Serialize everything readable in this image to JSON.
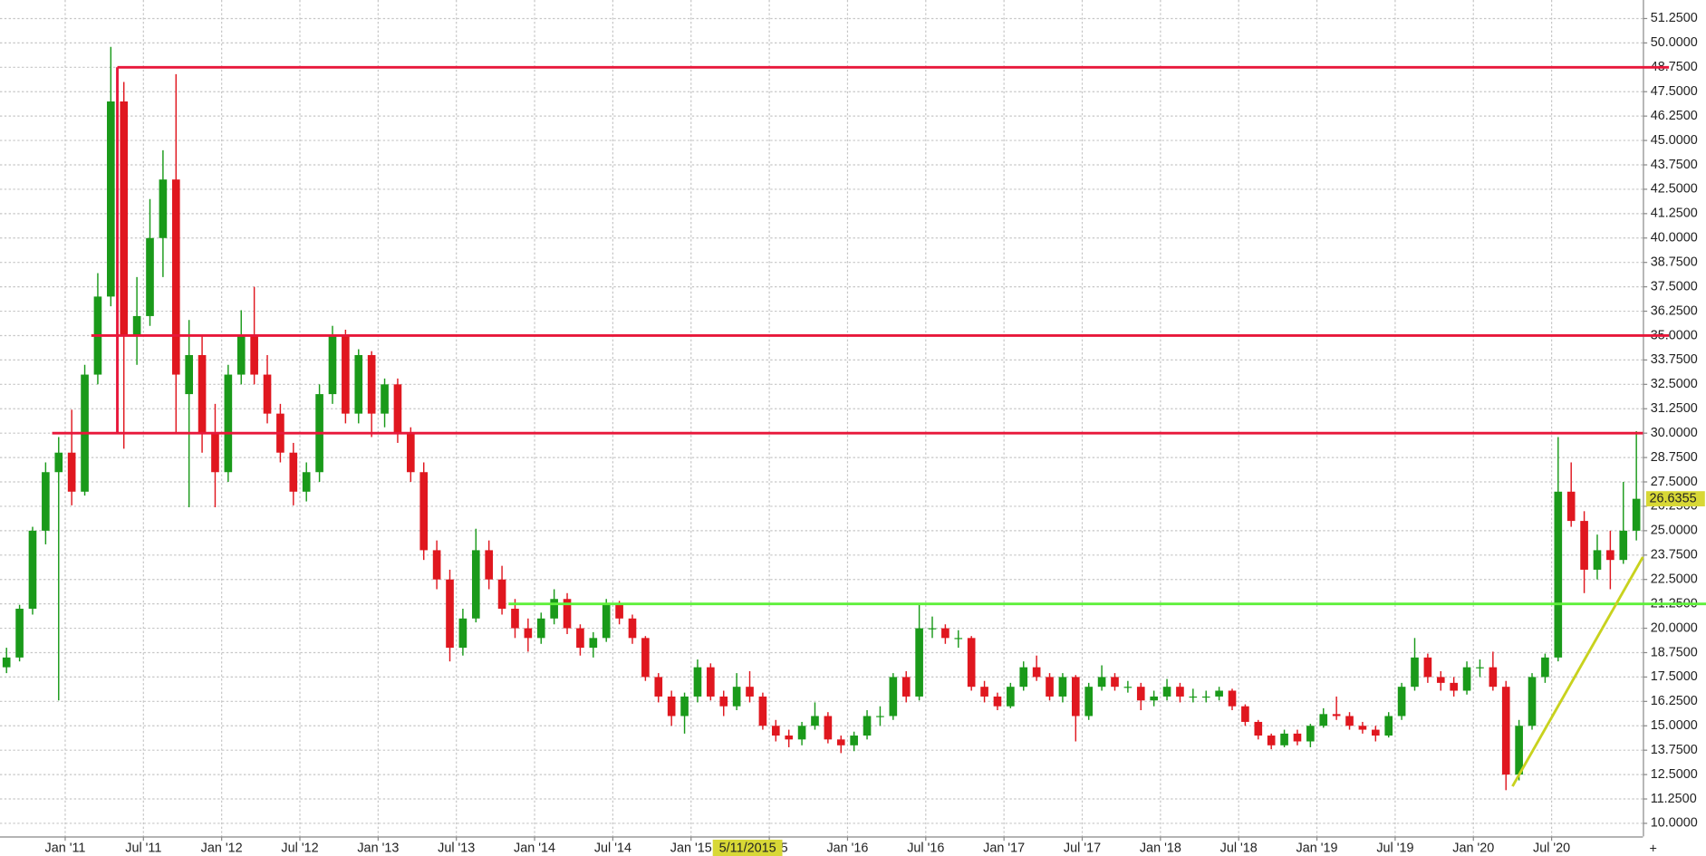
{
  "chart_data": {
    "type": "candlestick",
    "up_color": "#1a9a1a",
    "down_color": "#e0171f",
    "grid": true,
    "xlim": [
      "2010-08",
      "2021-02"
    ],
    "ylim": [
      9.33,
      52.2
    ],
    "xticks": [
      {
        "value": "2011-01",
        "label": "Jan '11"
      },
      {
        "value": "2011-07",
        "label": "Jul '11"
      },
      {
        "value": "2012-01",
        "label": "Jan '12"
      },
      {
        "value": "2012-07",
        "label": "Jul '12"
      },
      {
        "value": "2013-01",
        "label": "Jan '13"
      },
      {
        "value": "2013-07",
        "label": "Jul '13"
      },
      {
        "value": "2014-01",
        "label": "Jan '14"
      },
      {
        "value": "2014-07",
        "label": "Jul '14"
      },
      {
        "value": "2015-01",
        "label": "Jan '15"
      },
      {
        "value": "2015-07",
        "label": "Jul '15"
      },
      {
        "value": "2016-01",
        "label": "Jan '16"
      },
      {
        "value": "2016-07",
        "label": "Jul '16"
      },
      {
        "value": "2017-01",
        "label": "Jan '17"
      },
      {
        "value": "2017-07",
        "label": "Jul '17"
      },
      {
        "value": "2018-01",
        "label": "Jan '18"
      },
      {
        "value": "2018-07",
        "label": "Jul '18"
      },
      {
        "value": "2019-01",
        "label": "Jan '19"
      },
      {
        "value": "2019-07",
        "label": "Jul '19"
      },
      {
        "value": "2020-01",
        "label": "Jan '20"
      },
      {
        "value": "2020-07",
        "label": "Jul '20"
      }
    ],
    "yticks": [
      {
        "value": 10,
        "label": "10.0000"
      },
      {
        "value": 11.25,
        "label": "11.2500"
      },
      {
        "value": 12.5,
        "label": "12.5000"
      },
      {
        "value": 13.75,
        "label": "13.7500"
      },
      {
        "value": 15,
        "label": "15.0000"
      },
      {
        "value": 16.25,
        "label": "16.2500"
      },
      {
        "value": 17.5,
        "label": "17.5000"
      },
      {
        "value": 18.75,
        "label": "18.7500"
      },
      {
        "value": 20,
        "label": "20.0000"
      },
      {
        "value": 21.25,
        "label": "21.2500"
      },
      {
        "value": 22.5,
        "label": "22.5000"
      },
      {
        "value": 23.75,
        "label": "23.7500"
      },
      {
        "value": 25,
        "label": "25.0000"
      },
      {
        "value": 26.25,
        "label": "26.2500"
      },
      {
        "value": 27.5,
        "label": "27.5000"
      },
      {
        "value": 28.75,
        "label": "28.7500"
      },
      {
        "value": 30,
        "label": "30.0000"
      },
      {
        "value": 31.25,
        "label": "31.2500"
      },
      {
        "value": 32.5,
        "label": "32.5000"
      },
      {
        "value": 33.75,
        "label": "33.7500"
      },
      {
        "value": 35,
        "label": "35.0000"
      },
      {
        "value": 36.25,
        "label": "36.2500"
      },
      {
        "value": 37.5,
        "label": "37.5000"
      },
      {
        "value": 38.75,
        "label": "38.7500"
      },
      {
        "value": 40,
        "label": "40.0000"
      },
      {
        "value": 41.25,
        "label": "41.2500"
      },
      {
        "value": 42.5,
        "label": "42.5000"
      },
      {
        "value": 43.75,
        "label": "43.7500"
      },
      {
        "value": 45,
        "label": "45.0000"
      },
      {
        "value": 46.25,
        "label": "46.2500"
      },
      {
        "value": 47.5,
        "label": "47.5000"
      },
      {
        "value": 48.75,
        "label": "48.7500"
      },
      {
        "value": 50,
        "label": "50.0000"
      },
      {
        "value": 51.25,
        "label": "51.2500"
      }
    ],
    "x": [
      "2010-08",
      "2010-09",
      "2010-10",
      "2010-11",
      "2010-12",
      "2011-01",
      "2011-02",
      "2011-03",
      "2011-04",
      "2011-05",
      "2011-06",
      "2011-07",
      "2011-08",
      "2011-09",
      "2011-10",
      "2011-11",
      "2011-12",
      "2012-01",
      "2012-02",
      "2012-03",
      "2012-04",
      "2012-05",
      "2012-06",
      "2012-07",
      "2012-08",
      "2012-09",
      "2012-10",
      "2012-11",
      "2012-12",
      "2013-01",
      "2013-02",
      "2013-03",
      "2013-04",
      "2013-05",
      "2013-06",
      "2013-07",
      "2013-08",
      "2013-09",
      "2013-10",
      "2013-11",
      "2013-12",
      "2014-01",
      "2014-02",
      "2014-03",
      "2014-04",
      "2014-05",
      "2014-06",
      "2014-07",
      "2014-08",
      "2014-09",
      "2014-10",
      "2014-11",
      "2014-12",
      "2015-01",
      "2015-02",
      "2015-03",
      "2015-04",
      "2015-05",
      "2015-06",
      "2015-07",
      "2015-08",
      "2015-09",
      "2015-10",
      "2015-11",
      "2015-12",
      "2016-01",
      "2016-02",
      "2016-03",
      "2016-04",
      "2016-05",
      "2016-06",
      "2016-07",
      "2016-08",
      "2016-09",
      "2016-10",
      "2016-11",
      "2016-12",
      "2017-01",
      "2017-02",
      "2017-03",
      "2017-04",
      "2017-05",
      "2017-06",
      "2017-07",
      "2017-08",
      "2017-09",
      "2017-10",
      "2017-11",
      "2017-12",
      "2018-01",
      "2018-02",
      "2018-03",
      "2018-04",
      "2018-05",
      "2018-06",
      "2018-07",
      "2018-08",
      "2018-09",
      "2018-10",
      "2018-11",
      "2018-12",
      "2019-01",
      "2019-02",
      "2019-03",
      "2019-04",
      "2019-05",
      "2019-06",
      "2019-07",
      "2019-08",
      "2019-09",
      "2019-10",
      "2019-11",
      "2019-12",
      "2020-01",
      "2020-02",
      "2020-03",
      "2020-04",
      "2020-05",
      "2020-06",
      "2020-07",
      "2020-08",
      "2020-09",
      "2020-10",
      "2020-11",
      "2020-12",
      "2021-01"
    ],
    "open": [
      18,
      18.5,
      21,
      25,
      28,
      29,
      27,
      33,
      37,
      47,
      35,
      36,
      40,
      43,
      32,
      34,
      30,
      28,
      33,
      35,
      33,
      31,
      29,
      27,
      28,
      32,
      35,
      31,
      34,
      31,
      32.5,
      30,
      28,
      24,
      22.5,
      19,
      20.5,
      24,
      22.5,
      21,
      20,
      19.5,
      20.5,
      21.5,
      20,
      19,
      19.5,
      21.3,
      20.5,
      19.5,
      17.5,
      16.5,
      15.5,
      16.5,
      18,
      16.5,
      16,
      17,
      16.5,
      15,
      14.5,
      14.3,
      15,
      15.5,
      14.3,
      14,
      14.5,
      15.5,
      15.5,
      17.5,
      16.5,
      20,
      20,
      19.5,
      19.5,
      17,
      16.5,
      16,
      17,
      18,
      17.5,
      16.5,
      17.5,
      15.5,
      17,
      17.5,
      17,
      17,
      16.3,
      16.5,
      17,
      16.5,
      16.5,
      16.5,
      16.8,
      16,
      15.2,
      14.5,
      14,
      14.6,
      14.2,
      15,
      15.6,
      15.5,
      15,
      14.8,
      14.5,
      15.5,
      17,
      18.5,
      17.5,
      17.2,
      16.8,
      18,
      18,
      17,
      12.5,
      15,
      17.5,
      18.5,
      27,
      25.5,
      23,
      24,
      23.5,
      25
    ],
    "high": [
      19,
      21.2,
      25.2,
      28.5,
      29.8,
      31.2,
      33.5,
      38.2,
      49.8,
      48,
      38,
      42,
      44.5,
      48.4,
      35.8,
      35,
      31.5,
      33.5,
      36.3,
      37.5,
      34,
      31.5,
      29.5,
      28.5,
      32.5,
      35.5,
      35.3,
      34.3,
      34.2,
      32.8,
      32.8,
      30.3,
      28.5,
      24.5,
      23,
      21,
      25.1,
      24.5,
      23.2,
      21.5,
      20.5,
      20.8,
      22,
      21.8,
      20.2,
      19.8,
      21.5,
      21.4,
      20.7,
      19.6,
      17.7,
      16.8,
      16.7,
      18.4,
      18.2,
      16.8,
      17.7,
      17.8,
      16.7,
      15.3,
      14.8,
      15.2,
      16.2,
      15.7,
      14.5,
      14.7,
      15.8,
      16,
      17.7,
      17.8,
      21.3,
      20.6,
      20.2,
      19.9,
      19.6,
      17.3,
      16.7,
      17.2,
      18.3,
      18.6,
      17.7,
      17.7,
      17.6,
      17.2,
      18.1,
      17.7,
      17.3,
      17.2,
      16.8,
      17.4,
      17.2,
      16.9,
      16.8,
      17,
      16.9,
      16.1,
      15.3,
      14.6,
      14.8,
      14.8,
      15.1,
      15.9,
      16.5,
      15.7,
      15.2,
      15,
      15.7,
      17.2,
      19.5,
      18.7,
      17.8,
      17.5,
      18.3,
      18.4,
      18.8,
      17.3,
      15.3,
      17.7,
      18.7,
      29.8,
      28.5,
      26,
      24.8,
      25,
      27.5,
      30.1
    ],
    "low": [
      17.7,
      18.3,
      20.7,
      24.3,
      16.3,
      26.3,
      26.8,
      32.5,
      36.5,
      29.2,
      33.5,
      35.5,
      38,
      30,
      26.2,
      29,
      26.2,
      27.5,
      32.5,
      32.5,
      30.5,
      28.5,
      26.3,
      26.5,
      27.5,
      31.5,
      30.5,
      30.5,
      29.8,
      30.3,
      29.5,
      27.5,
      23.5,
      22,
      18.3,
      18.6,
      20.3,
      22,
      20.7,
      19.5,
      18.8,
      19.2,
      20.2,
      19.7,
      18.6,
      18.5,
      19.3,
      20.2,
      19.2,
      17.3,
      16.2,
      15,
      14.6,
      16.2,
      16.3,
      15.5,
      15.8,
      16.2,
      14.8,
      14.2,
      13.9,
      14,
      14.8,
      14.1,
      13.6,
      13.7,
      14.3,
      15,
      15.3,
      16.2,
      16.3,
      19.5,
      19.2,
      19,
      16.8,
      16.2,
      15.8,
      15.9,
      16.8,
      17.3,
      16.3,
      16.2,
      14.2,
      15.3,
      16.8,
      16.8,
      16.7,
      15.8,
      16,
      16.3,
      16.2,
      16.2,
      16.2,
      16.3,
      15.8,
      15,
      14.3,
      13.8,
      13.9,
      14,
      13.9,
      14.9,
      15.3,
      14.8,
      14.6,
      14.2,
      14.4,
      15.3,
      16.8,
      17.2,
      16.8,
      16.5,
      16.6,
      17.5,
      16.8,
      11.7,
      12.2,
      14.8,
      17.2,
      18.3,
      25.2,
      21.8,
      22.5,
      22,
      23.3,
      24.5
    ],
    "close": [
      18.5,
      21,
      25,
      28,
      29,
      27,
      33,
      37,
      47,
      35,
      36,
      40,
      43,
      33,
      34,
      30,
      28,
      33,
      35,
      33,
      31,
      29,
      27,
      28,
      32,
      35,
      31,
      34,
      31,
      32.5,
      30,
      28,
      24,
      22.5,
      19,
      20.5,
      24,
      22.5,
      21,
      20,
      19.5,
      20.5,
      21.5,
      20,
      19,
      19.5,
      21.3,
      20.5,
      19.5,
      17.5,
      16.5,
      15.5,
      16.5,
      18,
      16.5,
      16,
      17,
      16.5,
      15,
      14.5,
      14.3,
      15,
      15.5,
      14.3,
      14,
      14.5,
      15.5,
      15.5,
      17.5,
      16.5,
      20,
      20,
      19.5,
      19.5,
      17,
      16.5,
      16,
      17,
      18,
      17.5,
      16.5,
      17.5,
      15.5,
      17,
      17.5,
      17,
      17,
      16.3,
      16.5,
      17,
      16.5,
      16.5,
      16.5,
      16.8,
      16,
      15.2,
      14.5,
      14,
      14.6,
      14.2,
      15,
      15.6,
      15.5,
      15,
      14.8,
      14.5,
      15.5,
      17,
      18.5,
      17.5,
      17.2,
      16.8,
      18,
      18,
      17,
      12.5,
      15,
      17.5,
      18.5,
      27,
      25.5,
      23,
      24,
      23.5,
      25,
      26.6355
    ],
    "lines": [
      {
        "color": "#e8173a",
        "x": [
          "2011-05",
          "2021-04"
        ],
        "y": [
          48.75,
          48.75
        ]
      },
      {
        "color": "#e8173a",
        "x": [
          "2011-05",
          "2011-05"
        ],
        "y": [
          48.75,
          30
        ]
      },
      {
        "color": "#e8173a",
        "x": [
          "2011-03",
          "2021-04"
        ],
        "y": [
          35,
          35
        ]
      },
      {
        "color": "#e8173a",
        "x": [
          "2010-12",
          "2021-02"
        ],
        "y": [
          30,
          30
        ]
      },
      {
        "color": "#5ef03a",
        "x": [
          "2013-11",
          "2021-07"
        ],
        "y": [
          21.25,
          21.25
        ]
      },
      {
        "color": "#c8d21e",
        "x": [
          "2020-04",
          "2021-02"
        ],
        "y": [
          11.9,
          23.65
        ]
      }
    ],
    "crosshair_label": "5/11/2015",
    "label_color": "#d8d836"
  }
}
